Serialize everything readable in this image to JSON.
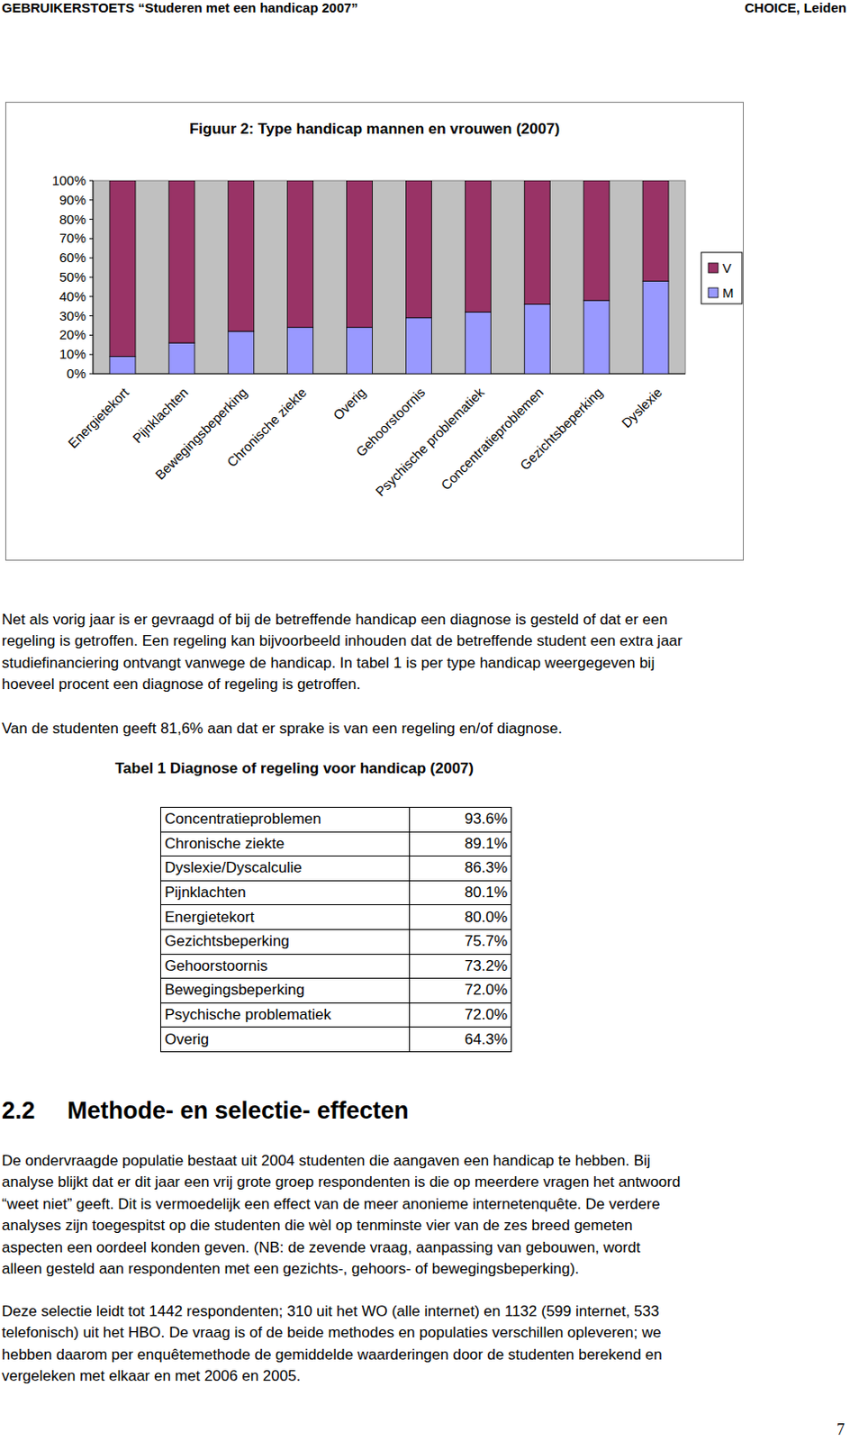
{
  "header": {
    "left": "GEBRUIKERSTOETS “Studeren met een handicap 2007”",
    "right": "CHOICE, Leiden"
  },
  "chart_data": {
    "type": "bar",
    "stacked": true,
    "title": "Figuur 2: Type handicap mannen en vrouwen (2007)",
    "categories": [
      "Energietekort",
      "Pijnklachten",
      "Bewegingsbeperking",
      "Chronische ziekte",
      "Overig",
      "Gehoorstoornis",
      "Psychische problematiek",
      "Concentratieproblemen",
      "Gezichtsbeperking",
      "Dyslexie"
    ],
    "series": [
      {
        "name": "V",
        "color": "#993366",
        "values": [
          91,
          84,
          78,
          76,
          76,
          71,
          68,
          64,
          62,
          52
        ]
      },
      {
        "name": "M",
        "color": "#9999ff",
        "values": [
          9,
          16,
          22,
          24,
          24,
          29,
          32,
          36,
          38,
          48
        ]
      }
    ],
    "ylim": [
      0,
      100
    ],
    "yticks": [
      {
        "value": 0,
        "label": "0%"
      },
      {
        "value": 10,
        "label": "10%"
      },
      {
        "value": 20,
        "label": "20%"
      },
      {
        "value": 30,
        "label": "30%"
      },
      {
        "value": 40,
        "label": "40%"
      },
      {
        "value": 50,
        "label": "50%"
      },
      {
        "value": 60,
        "label": "60%"
      },
      {
        "value": 70,
        "label": "70%"
      },
      {
        "value": 80,
        "label": "80%"
      },
      {
        "value": 90,
        "label": "90%"
      },
      {
        "value": 100,
        "label": "100%"
      }
    ],
    "grid": false,
    "legend": "right"
  },
  "intro": [
    {
      "lines": [
        "Net als vorig jaar is er gevraagd of bij de betreffende handicap een diagnose is gesteld of dat er een",
        "regeling is getroffen. Een regeling kan bijvoorbeeld inhouden dat de betreffende student een extra jaar",
        "studiefinanciering ontvangt vanwege de handicap. In tabel 1 is per type handicap weergegeven bij",
        "hoeveel procent een diagnose of regeling is getroffen."
      ]
    },
    {
      "lines": [
        "Van de studenten geeft 81,6% aan dat er sprake is van een regeling en/of diagnose."
      ]
    }
  ],
  "table": {
    "caption": "Tabel 1 Diagnose of regeling voor handicap (2007)",
    "rows": [
      [
        "Concentratieproblemen",
        "93.6%"
      ],
      [
        "Chronische ziekte",
        "89.1%"
      ],
      [
        "Dyslexie/Dyscalculie",
        "86.3%"
      ],
      [
        "Pijnklachten",
        "80.1%"
      ],
      [
        "Energietekort",
        "80.0%"
      ],
      [
        "Gezichtsbeperking",
        "75.7%"
      ],
      [
        "Gehoorstoornis",
        "73.2%"
      ],
      [
        "Bewegingsbeperking",
        "72.0%"
      ],
      [
        "Psychische problematiek",
        "72.0%"
      ],
      [
        "Overig",
        "64.3%"
      ]
    ]
  },
  "section": {
    "number": "2.2",
    "title": "Methode- en selectie- effecten"
  },
  "body": [
    {
      "lines": [
        "De ondervraagde populatie bestaat uit 2004 studenten die aangaven een handicap te hebben. Bij",
        "analyse blijkt dat er dit jaar een vrij grote groep respondenten is die op meerdere vragen het antwoord",
        "“weet niet” geeft. Dit is vermoedelijk een effect van de meer anonieme internetenquête. De verdere",
        "analyses zijn toegespitst op die studenten die wèl op tenminste vier van de zes breed gemeten",
        "aspecten een oordeel konden geven. (NB: de zevende vraag, aanpassing van gebouwen, wordt",
        "alleen gesteld aan respondenten met een gezichts-, gehoors- of bewegingsbeperking)."
      ]
    },
    {
      "lines": [
        "Deze selectie leidt tot 1442 respondenten; 310 uit het WO (alle internet) en 1132 (599 internet, 533",
        "telefonisch) uit het HBO. De vraag is of de beide methodes en populaties verschillen opleveren; we",
        "hebben daarom per enquêtemethode de gemiddelde waarderingen door de studenten berekend en",
        "vergeleken met elkaar en met 2006 en 2005."
      ]
    }
  ],
  "page_number": "7"
}
